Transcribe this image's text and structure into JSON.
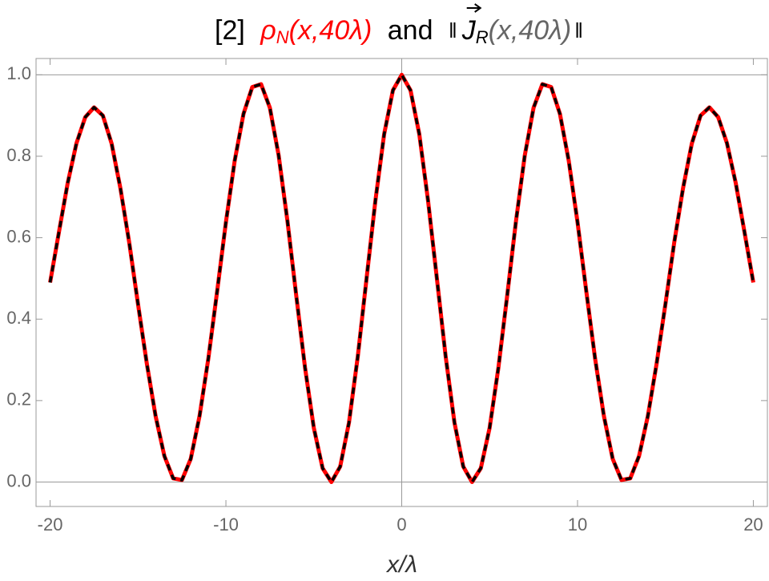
{
  "chart_data": {
    "type": "line",
    "title": {
      "prefix": "[2]",
      "rho_label": "ρ",
      "rho_sub": "N",
      "rho_args": "(x,40λ)",
      "conj": "and",
      "norm_open": "‖",
      "j_label": "J",
      "j_sub": "R",
      "j_args": "(x,40λ)",
      "norm_close": "‖"
    },
    "xlabel": "x/λ",
    "x": [
      -20,
      -19.5,
      -19,
      -18.5,
      -18,
      -17.5,
      -17,
      -16.5,
      -16,
      -15.5,
      -15,
      -14.5,
      -14,
      -13.5,
      -13,
      -12.5,
      -12,
      -11.5,
      -11,
      -10.5,
      -10,
      -9.5,
      -9,
      -8.5,
      -8,
      -7.5,
      -7,
      -6.5,
      -6,
      -5.5,
      -5,
      -4.5,
      -4,
      -3.5,
      -3,
      -2.5,
      -2,
      -1.5,
      -1,
      -0.5,
      0,
      0.5,
      1,
      1.5,
      2,
      2.5,
      3,
      3.5,
      4,
      4.5,
      5,
      5.5,
      6,
      6.5,
      7,
      7.5,
      8,
      8.5,
      9,
      9.5,
      10,
      10.5,
      11,
      11.5,
      12,
      12.5,
      13,
      13.5,
      14,
      14.5,
      15,
      15.5,
      16,
      16.5,
      17,
      17.5,
      18,
      18.5,
      19,
      19.5,
      20
    ],
    "series": [
      {
        "color": "#ff0000",
        "dash": false,
        "values": [
          0.49,
          0.613,
          0.734,
          0.832,
          0.896,
          0.92,
          0.9,
          0.831,
          0.721,
          0.588,
          0.437,
          0.291,
          0.162,
          0.064,
          0.009,
          0.005,
          0.057,
          0.162,
          0.303,
          0.468,
          0.638,
          0.789,
          0.904,
          0.97,
          0.977,
          0.919,
          0.802,
          0.641,
          0.458,
          0.281,
          0.133,
          0.034,
          0,
          0.038,
          0.146,
          0.308,
          0.5,
          0.69,
          0.854,
          0.962,
          1.0,
          0.962,
          0.854,
          0.69,
          0.5,
          0.308,
          0.146,
          0.038,
          0,
          0.034,
          0.133,
          0.281,
          0.458,
          0.641,
          0.802,
          0.919,
          0.977,
          0.97,
          0.904,
          0.789,
          0.638,
          0.468,
          0.303,
          0.162,
          0.057,
          0.005,
          0.009,
          0.064,
          0.162,
          0.291,
          0.437,
          0.588,
          0.721,
          0.831,
          0.9,
          0.92,
          0.896,
          0.832,
          0.734,
          0.613,
          0.49
        ]
      },
      {
        "color": "#000000",
        "dash": true,
        "values": [
          0.49,
          0.613,
          0.734,
          0.832,
          0.896,
          0.92,
          0.9,
          0.831,
          0.721,
          0.588,
          0.437,
          0.291,
          0.162,
          0.064,
          0.009,
          0.005,
          0.057,
          0.162,
          0.303,
          0.468,
          0.638,
          0.789,
          0.904,
          0.97,
          0.977,
          0.919,
          0.802,
          0.641,
          0.458,
          0.281,
          0.133,
          0.034,
          0,
          0.038,
          0.146,
          0.308,
          0.5,
          0.69,
          0.854,
          0.962,
          1.0,
          0.962,
          0.854,
          0.69,
          0.5,
          0.308,
          0.146,
          0.038,
          0,
          0.034,
          0.133,
          0.281,
          0.458,
          0.641,
          0.802,
          0.919,
          0.977,
          0.97,
          0.904,
          0.789,
          0.638,
          0.468,
          0.303,
          0.162,
          0.057,
          0.005,
          0.009,
          0.064,
          0.162,
          0.291,
          0.437,
          0.588,
          0.721,
          0.831,
          0.9,
          0.92,
          0.896,
          0.832,
          0.734,
          0.613,
          0.49
        ]
      }
    ],
    "xlim": [
      -20.8,
      20.8
    ],
    "ylim": [
      -0.06,
      1.04
    ],
    "xticks": [
      -20,
      -10,
      0,
      10,
      20
    ],
    "yticks": [
      {
        "value": 0,
        "label": "0.0"
      },
      {
        "value": 0.2,
        "label": "0.2"
      },
      {
        "value": 0.4,
        "label": "0.4"
      },
      {
        "value": 0.6,
        "label": "0.6"
      },
      {
        "value": 0.8,
        "label": "0.8"
      },
      {
        "value": 1,
        "label": "1.0"
      }
    ],
    "hlines": [
      0,
      1
    ],
    "vlines": [
      0
    ]
  }
}
